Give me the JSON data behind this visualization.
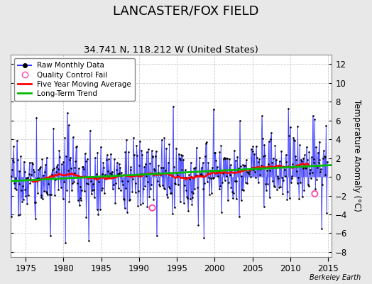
{
  "title": "LANCASTER/FOX FIELD",
  "subtitle": "34.741 N, 118.212 W (United States)",
  "ylabel": "Temperature Anomaly (°C)",
  "attribution": "Berkeley Earth",
  "xlim": [
    1973.0,
    2015.5
  ],
  "ylim": [
    -8.5,
    13.0
  ],
  "yticks": [
    -8,
    -6,
    -4,
    -2,
    0,
    2,
    4,
    6,
    8,
    10,
    12
  ],
  "xticks": [
    1975,
    1980,
    1985,
    1990,
    1995,
    2000,
    2005,
    2010,
    2015
  ],
  "bg_color": "#e8e8e8",
  "plot_bg_color": "#ffffff",
  "raw_color": "#3333ff",
  "raw_fill_color": "#9999ff",
  "moving_avg_color": "#ff0000",
  "trend_color": "#00bb00",
  "qc_fail_color": "#ff44aa",
  "title_fontsize": 13,
  "subtitle_fontsize": 9.5,
  "label_fontsize": 8.5,
  "tick_fontsize": 8.5,
  "qc_fail_points": [
    [
      1991.75,
      -3.3
    ],
    [
      2013.25,
      -1.8
    ]
  ],
  "trend_x": [
    1973.0,
    2015.5
  ],
  "trend_y": [
    -0.45,
    1.25
  ],
  "moving_avg_start_x": 1975.5,
  "moving_avg_end_x": 2012.5
}
